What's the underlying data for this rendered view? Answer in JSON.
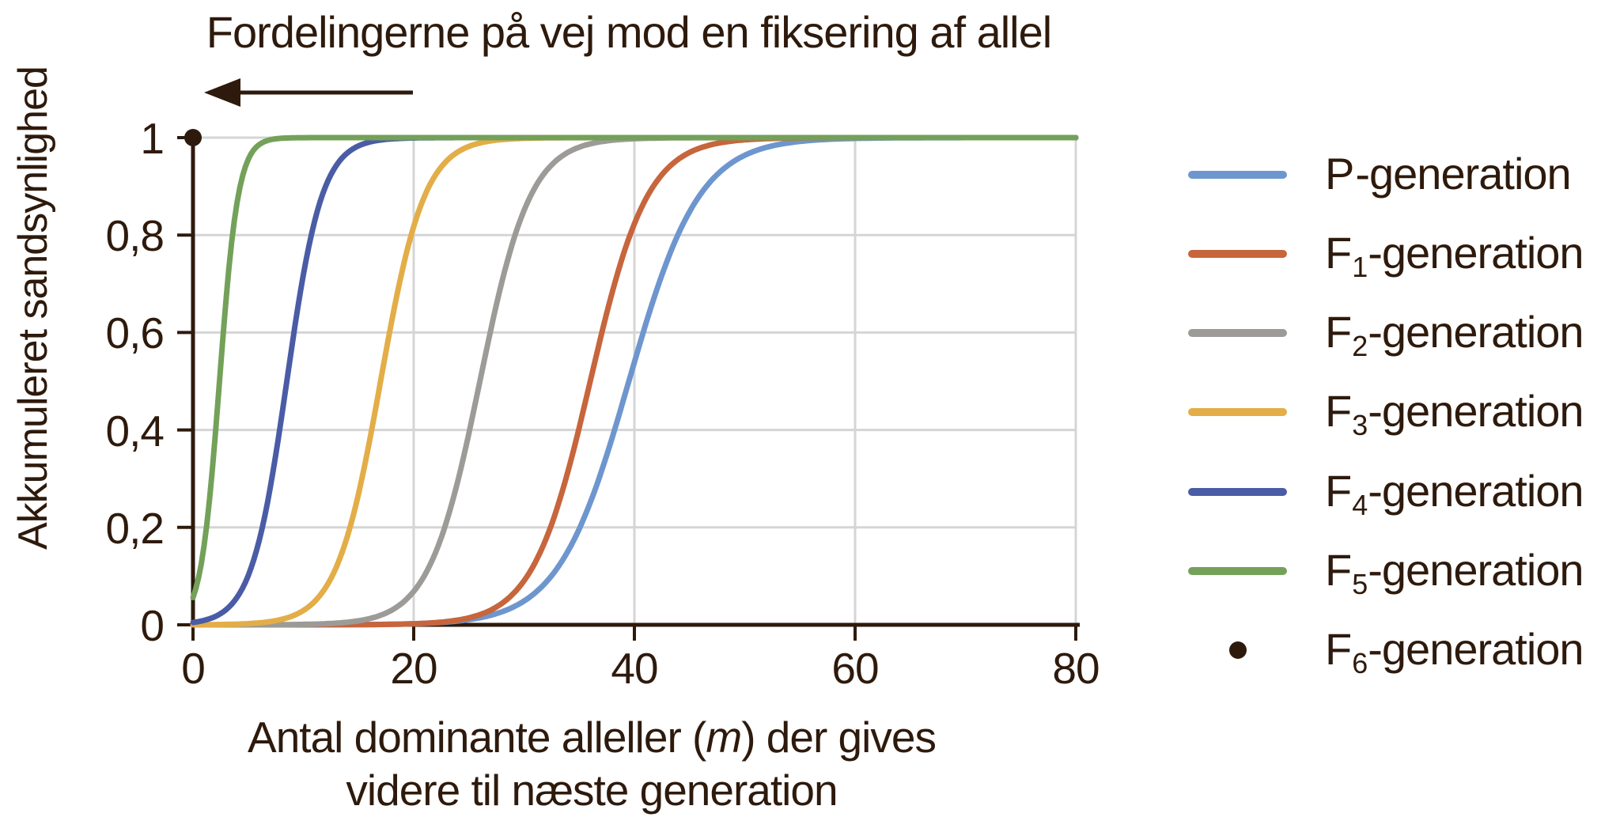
{
  "figure": {
    "background": "#FFFFFF"
  },
  "chart": {
    "title": "Fordelingerne på vej mod en fiksering af allel",
    "arrow_icon": "left-arrow",
    "y_axis_title": "Akkumuleret sandsynlighed",
    "x_axis_title_line1_pre": "Antal dominante alleller (",
    "x_axis_title_italic_var": "m",
    "x_axis_title_line1_post": ") der gives",
    "x_axis_title_line2": "videre til næste generation",
    "y_tick_labels": [
      "0",
      "0,2",
      "0,4",
      "0,6",
      "0,8",
      "1"
    ],
    "x_tick_labels": [
      "0",
      "20",
      "40",
      "60",
      "80"
    ]
  },
  "legend": {
    "items": [
      {
        "prefix": "P",
        "sub": "",
        "suffix": "-generation",
        "color": "#6E96CE",
        "marker": "line"
      },
      {
        "prefix": "F",
        "sub": "1",
        "suffix": "-generation",
        "color": "#C7653C",
        "marker": "line"
      },
      {
        "prefix": "F",
        "sub": "2",
        "suffix": "-generation",
        "color": "#9D9B97",
        "marker": "line"
      },
      {
        "prefix": "F",
        "sub": "3",
        "suffix": "-generation",
        "color": "#E3AD47",
        "marker": "line"
      },
      {
        "prefix": "F",
        "sub": "4",
        "suffix": "-generation",
        "color": "#4A5CA5",
        "marker": "line"
      },
      {
        "prefix": "F",
        "sub": "5",
        "suffix": "-generation",
        "color": "#73A159",
        "marker": "line"
      },
      {
        "prefix": "F",
        "sub": "6",
        "suffix": "-generation",
        "color": "#2E1A0C",
        "marker": "dot"
      }
    ]
  },
  "chart_data": {
    "type": "line",
    "title": "Fordelingerne på vej mod en fiksering af allel",
    "xlabel": "Antal dominante alleller (m) der gives videre til næste generation",
    "ylabel": "Akkumuleret sandsynlighed",
    "xlim": [
      0,
      80
    ],
    "ylim": [
      0,
      1
    ],
    "xticks": [
      0,
      20,
      40,
      60,
      80
    ],
    "yticks": [
      0,
      0.2,
      0.4,
      0.6,
      0.8,
      1
    ],
    "grid": true,
    "legend_position": "right",
    "annotation_arrow_direction": "left",
    "curve_model": "cumulative S-curve: y = 1/(1+exp(-(x-midpoint)/scale))",
    "series": [
      {
        "name": "P-generation",
        "color": "#6E96CE",
        "marker": "line",
        "midpoint": 39.5,
        "scale": 3.2
      },
      {
        "name": "F1-generation",
        "color": "#C7653C",
        "marker": "line",
        "midpoint": 36.0,
        "scale": 2.6
      },
      {
        "name": "F2-generation",
        "color": "#9D9B97",
        "marker": "line",
        "midpoint": 26.0,
        "scale": 2.3
      },
      {
        "name": "F3-generation",
        "color": "#E3AD47",
        "marker": "line",
        "midpoint": 17.0,
        "scale": 2.0
      },
      {
        "name": "F4-generation",
        "color": "#4A5CA5",
        "marker": "line",
        "midpoint": 8.5,
        "scale": 1.6
      },
      {
        "name": "F5-generation",
        "color": "#73A159",
        "marker": "line",
        "midpoint": 2.4,
        "scale": 0.85
      },
      {
        "name": "F6-generation",
        "color": "#2E1A0C",
        "marker": "point",
        "point": [
          0,
          1
        ]
      }
    ],
    "colors": {
      "axis": "#2E1A0C",
      "grid": "#D5D5D5",
      "background": "#FFFFFF"
    }
  }
}
